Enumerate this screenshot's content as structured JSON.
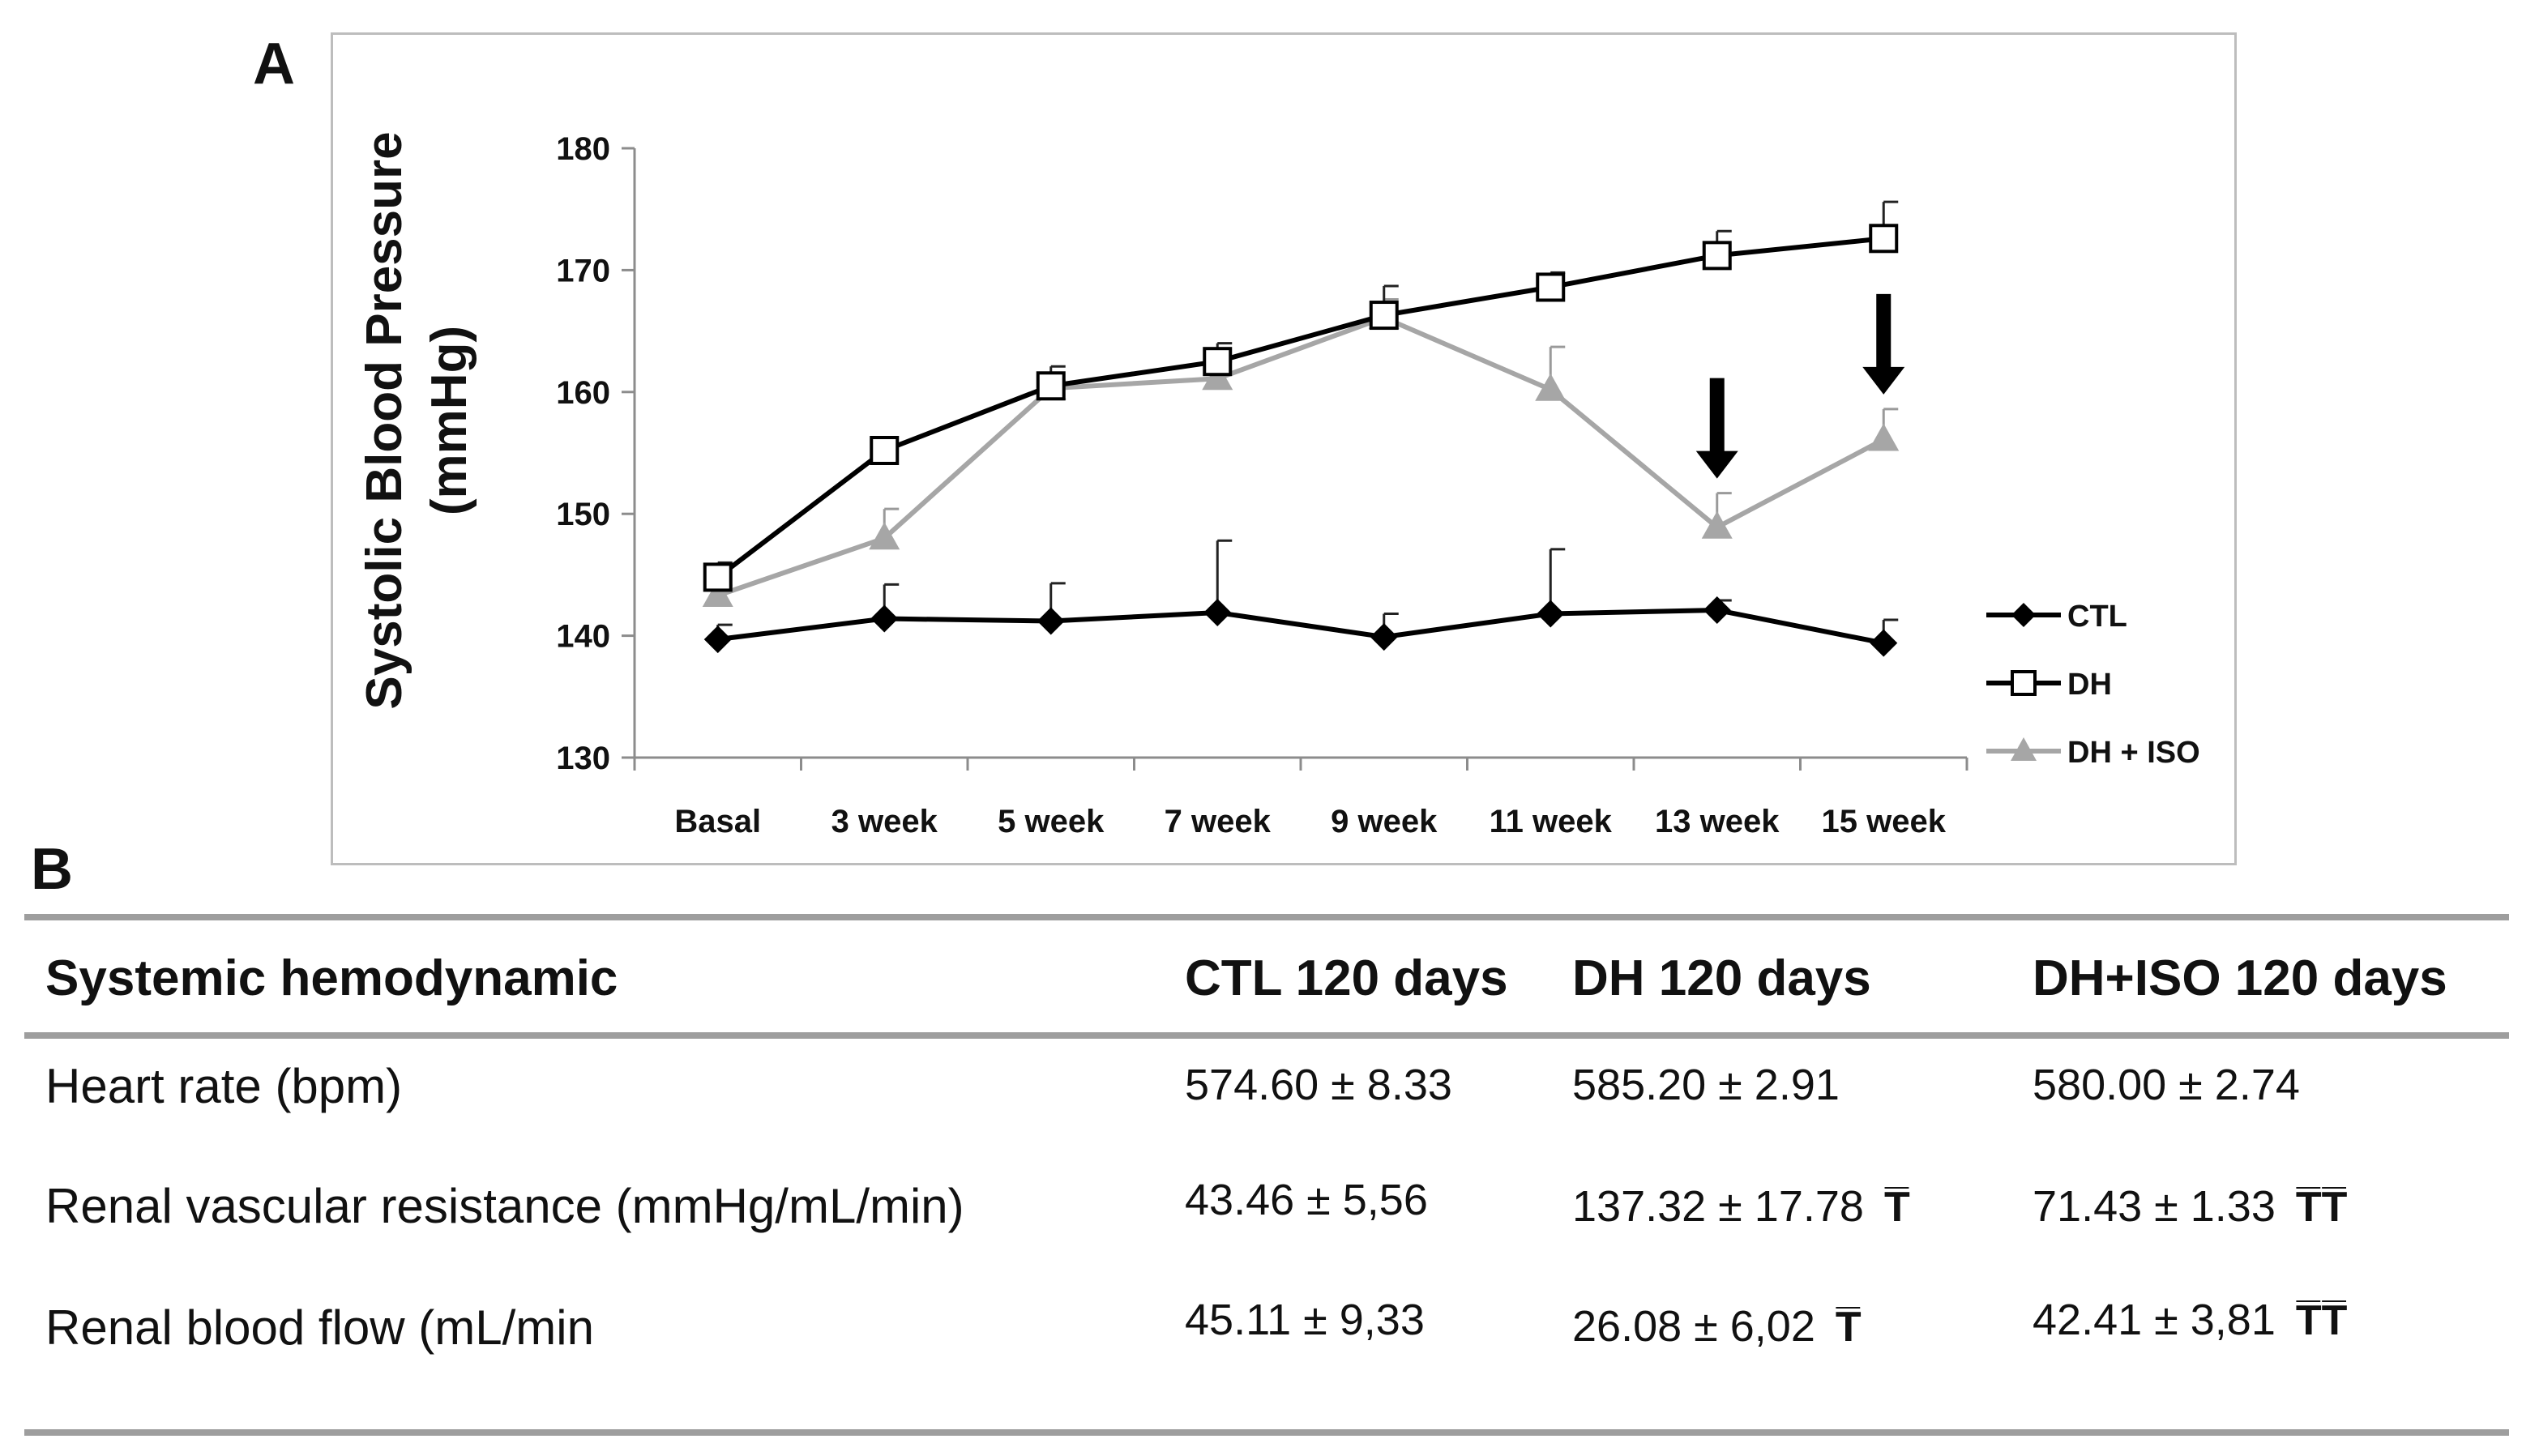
{
  "panels": {
    "a": "A",
    "b": "B"
  },
  "chart_data": {
    "type": "line",
    "title": "",
    "xlabel": "",
    "ylabel": "Systolic  Blood Pressure",
    "ylabel_units": "(mmHg)",
    "categories": [
      "Basal",
      "3 week",
      "5 week",
      "7 week",
      "9 week",
      "11 week",
      "13 week",
      "15 week"
    ],
    "ylim": [
      130,
      180
    ],
    "yticks": [
      "130",
      "140",
      "150",
      "160",
      "170",
      "180"
    ],
    "grid": false,
    "legend_position": "right",
    "series": [
      {
        "name": "CTL",
        "marker": "diamond",
        "color": "#000000",
        "values": [
          139.7,
          141.4,
          141.2,
          141.9,
          139.9,
          141.8,
          142.1,
          139.4
        ],
        "errors": [
          1.2,
          2.8,
          3.1,
          5.9,
          1.9,
          5.3,
          0.8,
          1.9
        ]
      },
      {
        "name": "DH",
        "marker": "open-square",
        "color": "#000000",
        "values": [
          144.8,
          155.2,
          160.5,
          162.5,
          166.3,
          168.6,
          171.2,
          172.6
        ],
        "errors": [
          1.2,
          0.0,
          1.6,
          1.5,
          2.4,
          1.2,
          2.0,
          3.0
        ]
      },
      {
        "name": "DH + ISO",
        "marker": "triangle",
        "color": "#a6a6a6",
        "values": [
          143.3,
          148.0,
          160.3,
          161.1,
          166.1,
          160.2,
          148.9,
          156.1
        ],
        "errors": [
          0.8,
          2.4,
          0.6,
          1.4,
          1.5,
          3.5,
          2.8,
          2.5
        ]
      }
    ],
    "annotations": [
      {
        "type": "down-arrow",
        "category": "13 week"
      },
      {
        "type": "down-arrow",
        "category": "15 week"
      }
    ]
  },
  "table": {
    "headers": [
      "Systemic  hemodynamic",
      "CTL 120 days",
      "DH 120 days",
      "DH+ISO 120 days"
    ],
    "rows": [
      {
        "label": "Heart rate (bpm)",
        "ctl": "574.60 ± 8.33",
        "dh": "585.20 ± 2.91",
        "dh_sig": "",
        "iso": "580.00 ± 2.74",
        "iso_sig": ""
      },
      {
        "label": "Renal vascular resistance (mmHg/mL/min)",
        "ctl": "43.46 ± 5,56",
        "dh": "137.32 ± 17.78",
        "dh_sig": "T̅",
        "iso": "71.43 ± 1.33",
        "iso_sig": "T̅T̅"
      },
      {
        "label": "Renal blood flow (mL/min",
        "ctl": "45.11 ± 9,33",
        "dh": "26.08  ± 6,02",
        "dh_sig": "T̅",
        "iso": "42.41  ± 3,81",
        "iso_sig": "T̅T̅"
      }
    ]
  }
}
